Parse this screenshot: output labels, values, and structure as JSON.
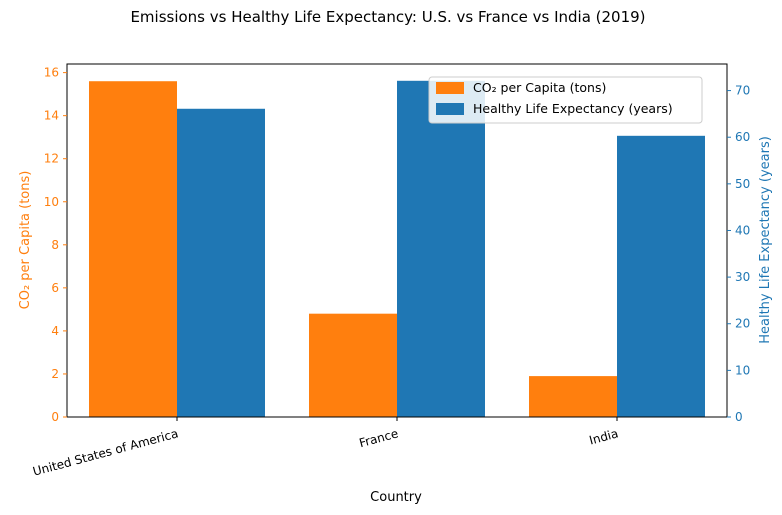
{
  "chart_data": {
    "type": "bar",
    "title": "Emissions vs Healthy Life Expectancy: U.S. vs France vs India (2019)",
    "xlabel": "Country",
    "categories": [
      "United States of America",
      "France",
      "India"
    ],
    "series": [
      {
        "name": "CO₂ per Capita (tons)",
        "axis": "left",
        "color": "#ff7f0e",
        "values": [
          15.6,
          4.8,
          1.9
        ]
      },
      {
        "name": "Healthy Life Expectancy (years)",
        "axis": "right",
        "color": "#1f77b4",
        "values": [
          66.1,
          72.1,
          60.3
        ]
      }
    ],
    "left_axis": {
      "label": "CO₂ per Capita (tons)",
      "color": "#ff7f0e",
      "range": [
        0,
        16.4
      ],
      "ticks": [
        0,
        2,
        4,
        6,
        8,
        10,
        12,
        14,
        16
      ]
    },
    "right_axis": {
      "label": "Healthy Life Expectancy (years)",
      "color": "#1f77b4",
      "range": [
        0,
        75.7
      ],
      "ticks": [
        0,
        10,
        20,
        30,
        40,
        50,
        60,
        70
      ]
    },
    "grid": false,
    "legend_position": "upper-right",
    "x_tick_rotation": -15
  }
}
